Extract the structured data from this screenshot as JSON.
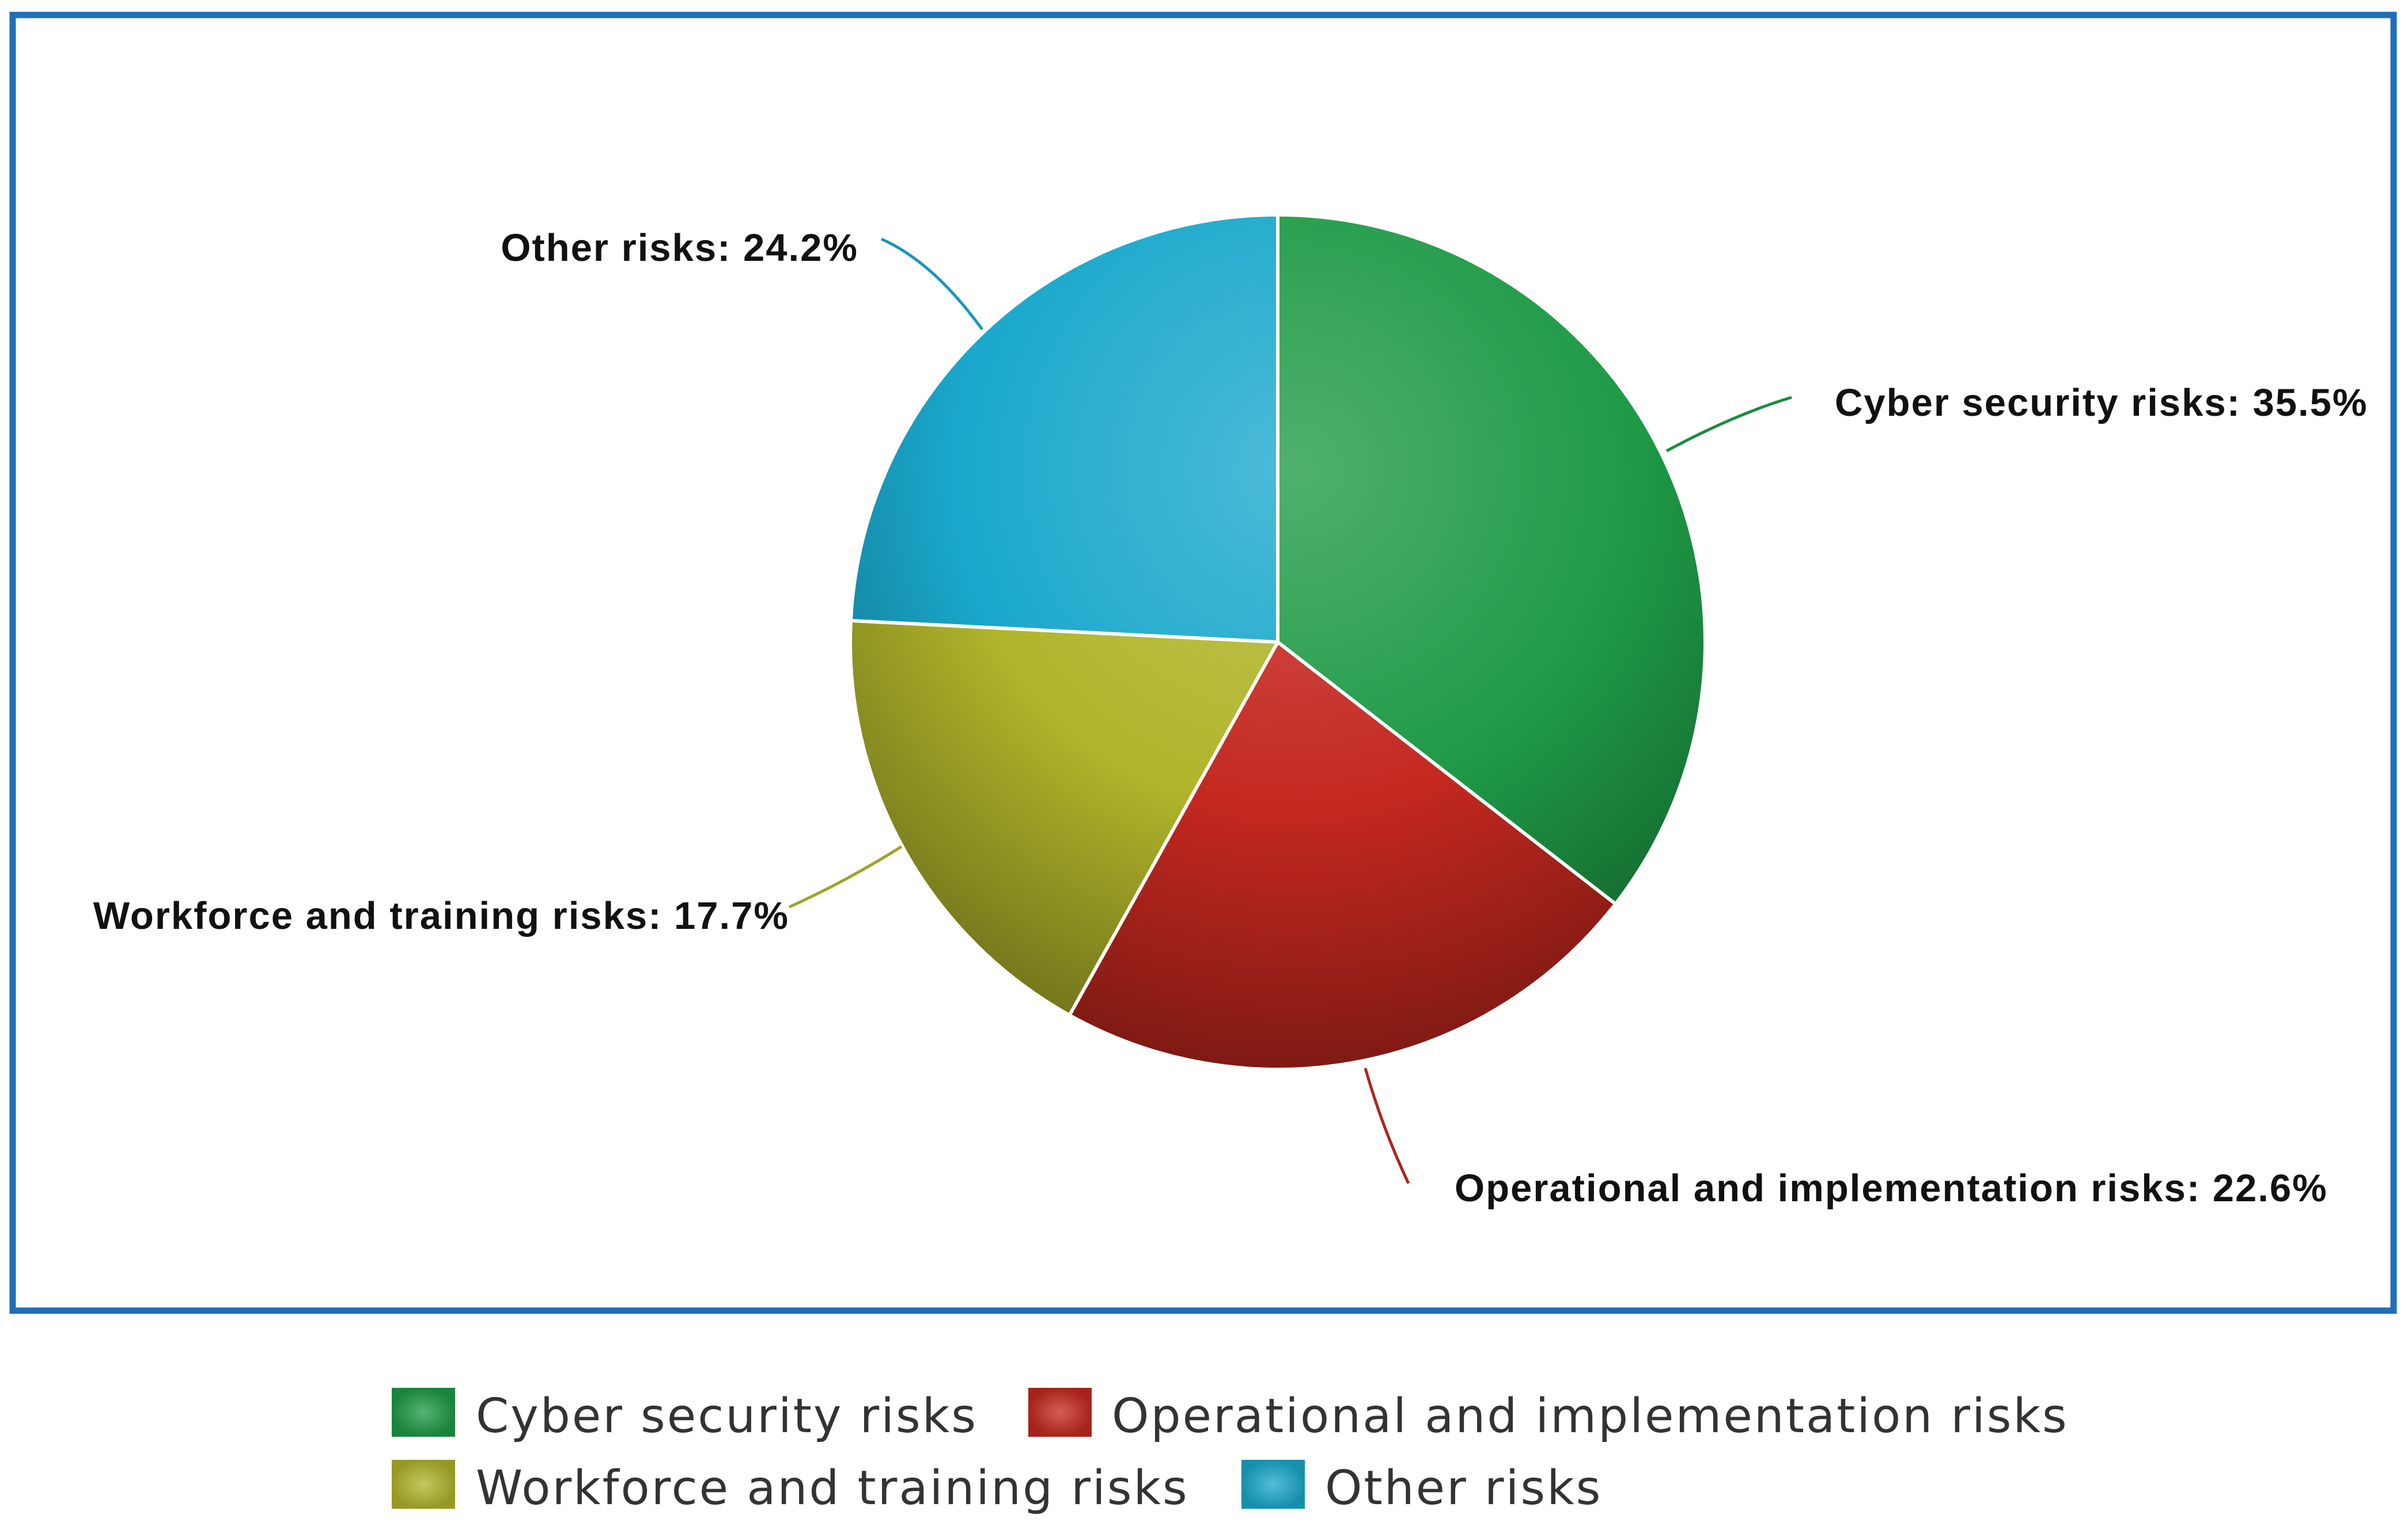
{
  "chart_data": {
    "type": "pie",
    "title": "",
    "slices": [
      {
        "name": "Cyber security risks",
        "value": 35.5,
        "label": "Cyber security risks: 35.5%",
        "color": "#1e9a46"
      },
      {
        "name": "Operational and implementation risks",
        "value": 22.6,
        "label": "Operational and implementation risks: 22.6%",
        "color": "#c4281f"
      },
      {
        "name": "Workforce and training risks",
        "value": 17.7,
        "label": "Workforce and training risks: 17.7%",
        "color": "#b0b52a"
      },
      {
        "name": "Other risks",
        "value": 24.2,
        "label": "Other risks: 24.2%",
        "color": "#1aa8cc"
      }
    ],
    "legend": {
      "placement": "bottom",
      "items": [
        "Cyber security risks",
        "Operational and implementation risks",
        "Workforce and training risks",
        "Other risks"
      ]
    }
  },
  "colors": {
    "frame_border": "#1f6fb5",
    "slice_separator": "#ffffff"
  }
}
